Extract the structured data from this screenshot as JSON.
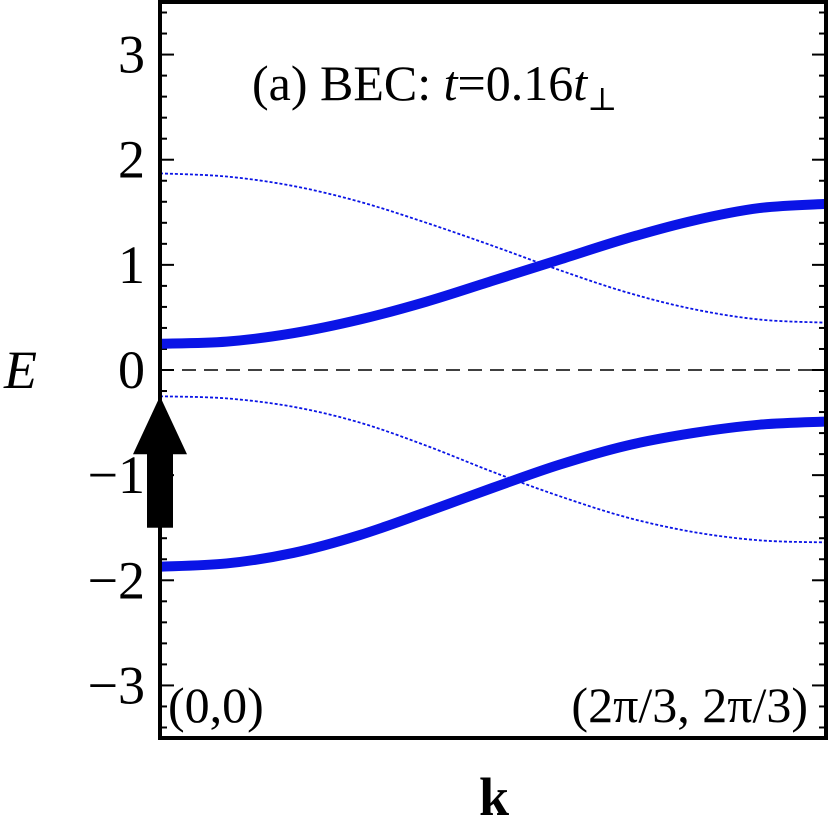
{
  "chart_data": {
    "type": "line",
    "title": "(a) BEC: t=0.16t⊥",
    "title_parts": {
      "prefix": "(a) BEC: ",
      "var": "t",
      "eq": "=0.16",
      "var2": "t",
      "sub": "⊥"
    },
    "xlabel": "k",
    "ylabel": "E",
    "ylim": [
      -3.5,
      3.5
    ],
    "xlim": [
      0,
      1
    ],
    "yticks": [
      -3,
      -2,
      -1,
      0,
      1,
      2,
      3
    ],
    "ytick_labels": [
      "−3",
      "−2",
      "−1",
      "0",
      "1",
      "2",
      "3"
    ],
    "x_endpoints": [
      "(0,0)",
      "(2π/3, 2π/3)"
    ],
    "zero_line": {
      "y": 0,
      "style": "dashed",
      "color": "#000000"
    },
    "arrow": {
      "x": 0,
      "y_from": -1.5,
      "y_to": -0.25,
      "color": "#000000"
    },
    "series": [
      {
        "style": "thick",
        "color": "#0a14e6",
        "x": [
          0,
          0.1,
          0.2,
          0.3,
          0.4,
          0.5,
          0.6,
          0.7,
          0.8,
          0.9,
          1.0
        ],
        "values": [
          0.25,
          0.27,
          0.35,
          0.48,
          0.65,
          0.85,
          1.05,
          1.25,
          1.42,
          1.54,
          1.58
        ]
      },
      {
        "style": "thin-dotted",
        "color": "#0a14e6",
        "x": [
          0,
          0.1,
          0.2,
          0.3,
          0.4,
          0.5,
          0.6,
          0.7,
          0.8,
          0.9,
          1.0
        ],
        "values": [
          1.87,
          1.84,
          1.75,
          1.6,
          1.4,
          1.18,
          0.95,
          0.74,
          0.58,
          0.48,
          0.45
        ]
      },
      {
        "style": "thin-dotted",
        "color": "#0a14e6",
        "x": [
          0,
          0.1,
          0.2,
          0.3,
          0.4,
          0.5,
          0.6,
          0.7,
          0.8,
          0.9,
          1.0
        ],
        "values": [
          -0.25,
          -0.27,
          -0.35,
          -0.5,
          -0.72,
          -0.97,
          -1.2,
          -1.4,
          -1.54,
          -1.62,
          -1.64
        ]
      },
      {
        "style": "thick",
        "color": "#0a14e6",
        "x": [
          0,
          0.1,
          0.2,
          0.3,
          0.4,
          0.5,
          0.6,
          0.7,
          0.8,
          0.9,
          1.0
        ],
        "values": [
          -1.87,
          -1.84,
          -1.74,
          -1.57,
          -1.35,
          -1.12,
          -0.9,
          -0.72,
          -0.6,
          -0.52,
          -0.49
        ]
      }
    ]
  }
}
